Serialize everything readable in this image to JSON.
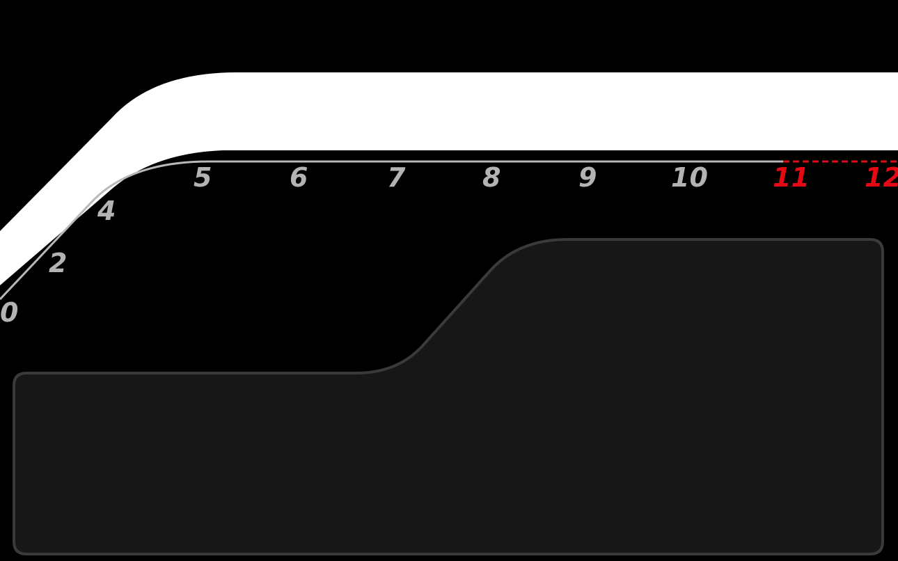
{
  "tachometer": {
    "scale_labels": [
      "0",
      "2",
      "4",
      "5",
      "6",
      "7",
      "8",
      "9",
      "10",
      "11",
      "12"
    ],
    "redline_labels": [
      "11",
      "12"
    ],
    "colors": {
      "background": "#000000",
      "rev_band": "#ffffff",
      "scale_line": "#b8b8b8",
      "scale_text": "#b3b3b3",
      "redline": "#e50914",
      "panel_fill": "#171717",
      "panel_border": "#3a3a3a"
    }
  },
  "info_panel": {
    "content": ""
  }
}
